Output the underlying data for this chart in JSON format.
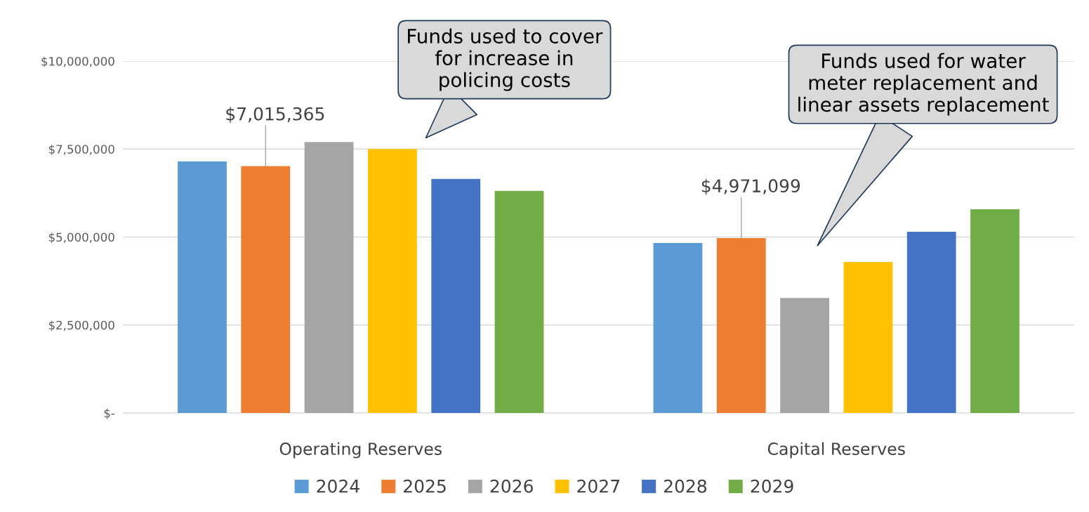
{
  "chart_data": {
    "type": "bar",
    "categories": [
      "Operating Reserves",
      "Capital Reserves"
    ],
    "series": [
      {
        "name": "2024",
        "color": "#5b9bd5",
        "values": [
          7150000,
          4830000
        ]
      },
      {
        "name": "2025",
        "color": "#ed7d31",
        "values": [
          7015365,
          4971099
        ],
        "value_labels": [
          "$7,015,365",
          "$4,971,099"
        ]
      },
      {
        "name": "2026",
        "color": "#a5a5a5",
        "values": [
          7700000,
          3270000
        ]
      },
      {
        "name": "2027",
        "color": "#ffc000",
        "values": [
          7500000,
          4290000
        ]
      },
      {
        "name": "2028",
        "color": "#4472c4",
        "values": [
          6650000,
          5150000
        ]
      },
      {
        "name": "2029",
        "color": "#70ad47",
        "values": [
          6310000,
          5790000
        ]
      }
    ],
    "ylim": [
      0,
      10000000
    ],
    "yticks": [
      {
        "value": 0,
        "label": "$-"
      },
      {
        "value": 2500000,
        "label": "$2,500,000"
      },
      {
        "value": 5000000,
        "label": "$5,000,000"
      },
      {
        "value": 7500000,
        "label": "$7,500,000"
      },
      {
        "value": 10000000,
        "label": "$10,000,000"
      }
    ],
    "grid": "y",
    "legend": "bottom",
    "annotations": [
      "Funds used to cover\nfor increase in\npolicing costs",
      "Funds used for water\nmeter replacement and\nlinear assets replacement"
    ]
  }
}
